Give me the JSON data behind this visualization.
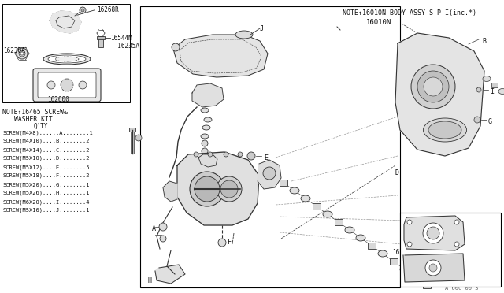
{
  "bg_color": "#ffffff",
  "border_color": "#000000",
  "line_color": "#333333",
  "text_color": "#000000",
  "note_top_text": "NOTE↑16010N BODY ASSY S.P.I(inc.*)",
  "part_number_main": "16010N",
  "screw_list": [
    "SCREW(M4X8)......A........1",
    "SCREW(M4X10)....B........2",
    "SCREW(M4X14)....C........2",
    "SCREW(M5X10)....D........2",
    "SCREW(M5X12)....E........5",
    "SCREW(M5X18)....F........2",
    "SCREW(M5X20)....G........1",
    "SCREW(M5X26)....H........1",
    "SCREW(M6X20)....I........4",
    "SCREW(M5X16)....J........1"
  ],
  "fig_width": 6.4,
  "fig_height": 3.72,
  "dpi": 100
}
